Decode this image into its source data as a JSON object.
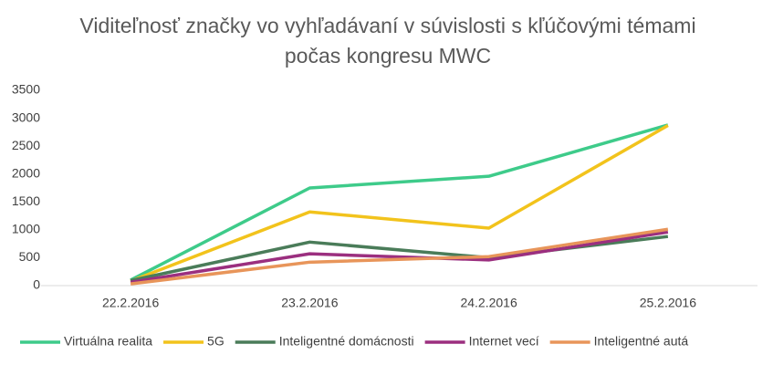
{
  "chart_data": {
    "type": "line",
    "title": "Viditeľnosť značky vo vyhľadávaní v súvislosti s kľúčovými témami počas kongresu MWC",
    "categories": [
      "22.2.2016",
      "23.2.2016",
      "24.2.2016",
      "25.2.2016"
    ],
    "series": [
      {
        "name": "Virtuálna realita",
        "color": "#3ecb8a",
        "values": [
          100,
          1750,
          1960,
          2880
        ]
      },
      {
        "name": "5G",
        "color": "#f2c31c",
        "values": [
          80,
          1320,
          1030,
          2870
        ]
      },
      {
        "name": "Inteligentné domácnosti",
        "color": "#4a7c59",
        "values": [
          90,
          780,
          500,
          880
        ]
      },
      {
        "name": "Internet vecí",
        "color": "#9b2f7f",
        "values": [
          60,
          570,
          460,
          960
        ]
      },
      {
        "name": "Inteligentné autá",
        "color": "#e8955a",
        "values": [
          30,
          420,
          520,
          1010
        ]
      }
    ],
    "ylim": [
      0,
      3500
    ],
    "yticks": [
      0,
      500,
      1000,
      1500,
      2000,
      2500,
      3000,
      3500
    ],
    "grid": false,
    "legend": "bottom"
  }
}
